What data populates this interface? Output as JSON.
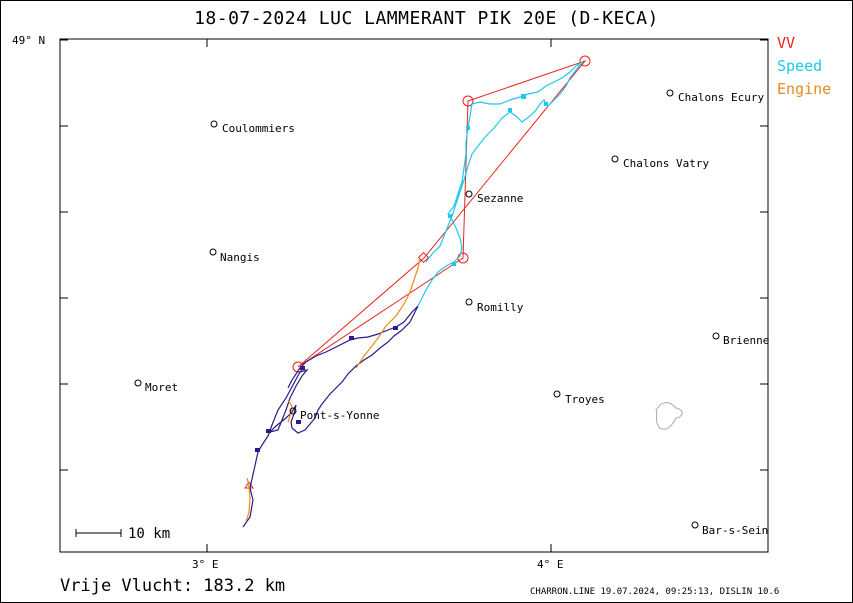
{
  "title": "18-07-2024   LUC LAMMERANT   PIK 20E (D-KECA)",
  "legend": [
    {
      "label": "VV",
      "color": "#e8231d"
    },
    {
      "label": "Speed",
      "color": "#1ec8ef"
    },
    {
      "label": "Engine",
      "color": "#e88a1e"
    }
  ],
  "axes": {
    "lat_label": "49° N",
    "lon_labels": [
      "3° E",
      "4° E"
    ]
  },
  "scale_bar": "10  km",
  "distance": "Vrije Vlucht:  183.2 km",
  "footer": "CHARRON.LINE 19.07.2024, 09:25:13, DISLIN 10.6",
  "places": [
    {
      "name": "Coulommiers"
    },
    {
      "name": "Nangis"
    },
    {
      "name": "Moret"
    },
    {
      "name": "Pont-s-Yonne"
    },
    {
      "name": "Sezanne"
    },
    {
      "name": "Romilly"
    },
    {
      "name": "Troyes"
    },
    {
      "name": "Chalons Ecury"
    },
    {
      "name": "Chalons Vatry"
    },
    {
      "name": "Brienne"
    },
    {
      "name": "Bar-s-Sein"
    }
  ]
}
